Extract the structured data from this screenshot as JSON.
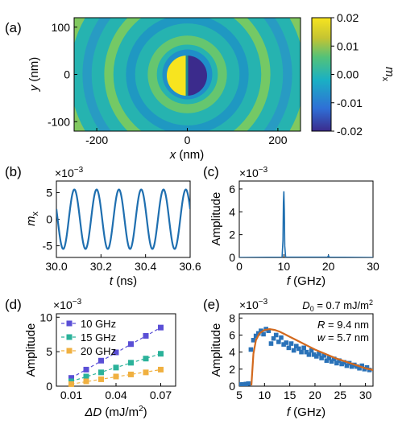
{
  "chart_data": [
    {
      "panel": "(a)",
      "type": "heatmap",
      "xlabel_var": "x",
      "xlabel_unit": "(nm)",
      "ylabel_var": "y",
      "ylabel_unit": "(nm)",
      "x_ticks": [
        -200,
        0,
        200
      ],
      "y_ticks": [
        100,
        0,
        -100
      ],
      "xlim": [
        -250,
        250
      ],
      "ylim": [
        -120,
        120
      ],
      "colorbar": {
        "label": "m",
        "label_sub": "x",
        "ticks": [
          "0.02",
          "0.01",
          "0.00",
          "-0.01",
          "-0.02"
        ],
        "range": [
          -0.02,
          0.02
        ],
        "colors": [
          "#3b2b8c",
          "#2f6fd6",
          "#1ab0c4",
          "#52c27a",
          "#c4c432",
          "#f7e41f"
        ]
      },
      "features": {
        "positive_lobe_center_x": -28,
        "negative_lobe_center_x": 28,
        "lobe_value": 0.02,
        "background_value": 0.0,
        "ring_spacing_nm": 48
      }
    },
    {
      "panel": "(b)",
      "type": "line",
      "xlabel_var": "t",
      "xlabel_unit": "(ns)",
      "ylabel_var": "m",
      "ylabel_sub": "x",
      "scale_label": "×10",
      "scale_exp": "−3",
      "x_ticks": [
        "30.0",
        "30.2",
        "30.4",
        "30.6"
      ],
      "x_tick_values": [
        30.0,
        30.2,
        30.4,
        30.6
      ],
      "y_ticks": [
        "5",
        "0",
        "-5"
      ],
      "y_tick_values": [
        5,
        0,
        -5
      ],
      "xlim": [
        30.0,
        30.6
      ],
      "ylim": [
        -7.2,
        7.2
      ],
      "series": [
        {
          "frequency_GHz": 10,
          "amplitude": 5.6,
          "phase_deg": 160,
          "color": "#1f6fb0"
        }
      ]
    },
    {
      "panel": "(c)",
      "type": "line",
      "xlabel_var": "f",
      "xlabel_unit": "(GHz)",
      "ylabel": "Amplitude",
      "scale_label": "×10",
      "scale_exp": "−3",
      "x_ticks": [
        "0",
        "10",
        "20",
        "30"
      ],
      "x_tick_values": [
        0,
        10,
        20,
        30
      ],
      "y_ticks": [
        "6",
        "4",
        "2",
        "0"
      ],
      "y_tick_values": [
        6,
        4,
        2,
        0
      ],
      "xlim": [
        0,
        30
      ],
      "ylim": [
        0,
        6.7
      ],
      "series": [
        {
          "color": "#1f6fb0",
          "x": [
            0,
            9.6,
            9.8,
            9.9,
            10.0,
            10.1,
            10.2,
            10.4,
            19.8,
            20.0,
            20.2,
            30
          ],
          "y": [
            0,
            0.02,
            1.5,
            4.8,
            5.8,
            4.2,
            1.0,
            0.02,
            0.02,
            0.15,
            0.02,
            0
          ]
        }
      ]
    },
    {
      "panel": "(d)",
      "type": "scatter",
      "xlabel_var": "ΔD",
      "xlabel_unit": "(mJ/m",
      "xlabel_unit_sup": "2",
      "xlabel_unit_close": ")",
      "ylabel": "Amplitude",
      "scale_label": "×10",
      "scale_exp": "−3",
      "x_ticks": [
        "0.01",
        "0.04",
        "0.07"
      ],
      "x_tick_values": [
        0.01,
        0.04,
        0.07
      ],
      "y_ticks": [
        "10",
        "5",
        "0"
      ],
      "y_tick_values": [
        10,
        5,
        0
      ],
      "xlim": [
        0.0,
        0.08
      ],
      "ylim": [
        0,
        10.5
      ],
      "legend_position": "top-left",
      "x": [
        0.01,
        0.02,
        0.03,
        0.04,
        0.05,
        0.06,
        0.07
      ],
      "series": [
        {
          "name": "10 GHz",
          "color": "#5a4fd6",
          "marker": "square",
          "values": [
            1.2,
            2.4,
            3.7,
            4.9,
            6.1,
            7.3,
            8.5
          ]
        },
        {
          "name": "15 GHz",
          "color": "#2bb29a",
          "marker": "square",
          "values": [
            0.7,
            1.4,
            2.0,
            2.7,
            3.4,
            4.0,
            4.7
          ]
        },
        {
          "name": "20 GHz",
          "color": "#f0b040",
          "marker": "square",
          "values": [
            0.3,
            0.7,
            1.0,
            1.4,
            1.7,
            2.0,
            2.4
          ]
        }
      ]
    },
    {
      "panel": "(e)",
      "type": "scatter",
      "xlabel_var": "f",
      "xlabel_unit": "(GHz)",
      "ylabel": "Amplitude",
      "scale_label": "×10",
      "scale_exp": "−3",
      "x_ticks": [
        "5",
        "10",
        "15",
        "20",
        "25",
        "30"
      ],
      "x_tick_values": [
        5,
        10,
        15,
        20,
        25,
        30
      ],
      "y_ticks": [
        "8",
        "6",
        "4",
        "2",
        "0"
      ],
      "y_tick_values": [
        8,
        6,
        4,
        2,
        0
      ],
      "xlim": [
        5,
        31.5
      ],
      "ylim": [
        0,
        8.5
      ],
      "annotations": {
        "d0_var": "D",
        "d0_sub": "0",
        "d0_value": " = 0.7 mJ/m",
        "d0_sup": "2",
        "r_var": "R",
        "r_value": " = 9.4 nm",
        "w_var": "w",
        "w_value": " = 5.7 nm"
      },
      "series": [
        {
          "color": "#2a72b8",
          "marker": "square",
          "x": [
            5.3,
            5.8,
            6.3,
            6.8,
            7.3,
            7.8,
            8.3,
            8.8,
            9.3,
            9.8,
            10.3,
            10.8,
            11.3,
            11.8,
            12.3,
            12.8,
            13.3,
            13.8,
            14.3,
            14.8,
            15.3,
            15.8,
            16.3,
            16.8,
            17.3,
            17.8,
            18.3,
            18.8,
            19.3,
            19.8,
            20.3,
            20.8,
            21.3,
            21.8,
            22.3,
            22.8,
            23.3,
            23.8,
            24.3,
            24.8,
            25.3,
            25.8,
            26.3,
            26.8,
            27.3,
            27.8,
            28.3,
            28.8,
            29.3,
            29.8,
            30.3,
            30.8
          ],
          "y": [
            0.2,
            0.2,
            0.25,
            0.3,
            4.3,
            5.4,
            5.9,
            6.2,
            6.5,
            6.1,
            6.7,
            6.5,
            5.0,
            5.6,
            6.0,
            5.2,
            5.7,
            4.9,
            5.1,
            4.5,
            5.0,
            4.2,
            4.7,
            4.4,
            4.0,
            4.5,
            4.0,
            3.7,
            4.2,
            3.7,
            3.5,
            3.8,
            3.3,
            3.6,
            3.0,
            3.3,
            2.9,
            3.2,
            2.7,
            3.0,
            2.6,
            2.8,
            2.4,
            2.7,
            2.3,
            2.5,
            2.3,
            2.1,
            2.4,
            2.0,
            2.2,
            1.9
          ]
        },
        {
          "color": "#d2691e",
          "marker": "line",
          "x": [
            7.4,
            7.8,
            8.3,
            9,
            10,
            11,
            12,
            13,
            14,
            15,
            16,
            18,
            20,
            22,
            24,
            26,
            28,
            30,
            31.5
          ],
          "y": [
            0.1,
            3.8,
            5.4,
            6.2,
            6.6,
            6.7,
            6.6,
            6.4,
            6.1,
            5.8,
            5.5,
            4.9,
            4.3,
            3.8,
            3.3,
            2.9,
            2.5,
            2.1,
            1.9
          ]
        }
      ]
    }
  ]
}
